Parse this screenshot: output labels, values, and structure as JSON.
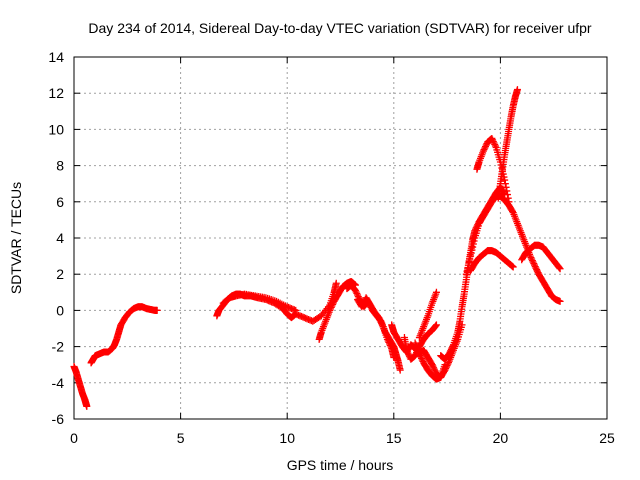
{
  "chart_data": {
    "type": "scatter",
    "title": "Day 234 of 2014, Sidereal Day-to-day VTEC variation (SDTVAR) for receiver ufpr",
    "xlabel": "GPS time / hours",
    "ylabel": "SDTVAR / TECUs",
    "xlim": [
      0,
      25
    ],
    "ylim": [
      -6,
      14
    ],
    "xticks": [
      0,
      5,
      10,
      15,
      20,
      25
    ],
    "yticks": [
      -6,
      -4,
      -2,
      0,
      2,
      4,
      6,
      8,
      10,
      12,
      14
    ],
    "grid": true,
    "marker": "+",
    "series_color": "#ff0000",
    "segments": [
      {
        "x": [
          0.0,
          0.1,
          0.2,
          0.3,
          0.4,
          0.5,
          0.55,
          0.6
        ],
        "y": [
          -3.1,
          -3.4,
          -3.8,
          -4.2,
          -4.6,
          -4.9,
          -5.1,
          -5.3
        ]
      },
      {
        "x": [
          0.8,
          0.9,
          1.0,
          1.2,
          1.4,
          1.6,
          1.8,
          1.9,
          2.0,
          2.1,
          2.2,
          2.4,
          2.6,
          2.8,
          3.0,
          3.2,
          3.4,
          3.6,
          3.8,
          3.9
        ],
        "y": [
          -2.9,
          -2.7,
          -2.5,
          -2.4,
          -2.3,
          -2.3,
          -2.1,
          -1.9,
          -1.6,
          -1.2,
          -0.8,
          -0.4,
          -0.1,
          0.1,
          0.2,
          0.2,
          0.1,
          0.05,
          0.0,
          0.0
        ]
      },
      {
        "x": [
          6.7,
          6.8,
          7.0,
          7.2,
          7.4,
          7.6,
          7.8,
          8.0,
          8.3,
          8.6,
          9.0,
          9.4,
          9.8,
          10.0,
          10.2,
          10.4,
          10.8,
          11.2,
          11.6,
          12.0,
          12.2,
          12.3
        ],
        "y": [
          -0.3,
          0.0,
          0.3,
          0.6,
          0.8,
          0.9,
          0.9,
          0.8,
          0.8,
          0.7,
          0.6,
          0.4,
          0.1,
          -0.2,
          -0.4,
          -0.2,
          -0.4,
          -0.6,
          -0.3,
          0.3,
          1.0,
          1.5
        ]
      },
      {
        "x": [
          7.0,
          7.3,
          7.6,
          8.0,
          8.5,
          9.0,
          9.5,
          10.0,
          10.4
        ],
        "y": [
          0.4,
          0.7,
          0.8,
          0.9,
          0.8,
          0.7,
          0.5,
          0.2,
          0.0
        ]
      },
      {
        "x": [
          11.5,
          11.6,
          11.8,
          12.0,
          12.2,
          12.4,
          12.6,
          12.8,
          13.0,
          13.2
        ],
        "y": [
          -1.6,
          -1.2,
          -0.6,
          0.0,
          0.5,
          0.9,
          1.3,
          1.5,
          1.6,
          1.4
        ]
      },
      {
        "x": [
          12.8,
          13.0,
          13.2,
          13.4,
          13.6,
          13.8,
          14.0,
          14.2,
          14.4,
          14.6,
          14.8,
          15.0,
          15.1,
          15.2,
          15.3
        ],
        "y": [
          1.2,
          1.4,
          1.1,
          0.6,
          0.2,
          0.5,
          0.0,
          -0.3,
          -0.6,
          -1.2,
          -1.6,
          -2.0,
          -2.4,
          -2.8,
          -3.3
        ]
      },
      {
        "x": [
          13.3,
          13.5,
          13.7,
          13.9,
          14.1,
          14.3,
          14.5,
          14.7,
          14.9,
          15.0
        ],
        "y": [
          0.6,
          0.2,
          0.7,
          0.3,
          -0.1,
          -0.4,
          -0.9,
          -1.6,
          -2.1,
          -2.6
        ]
      },
      {
        "x": [
          14.9,
          15.0,
          15.2,
          15.4,
          15.6,
          15.8,
          16.0,
          16.2,
          16.4,
          16.6,
          16.8,
          17.0,
          17.2,
          17.4
        ],
        "y": [
          -0.8,
          -1.2,
          -1.6,
          -2.0,
          -2.3,
          -1.9,
          -2.1,
          -2.4,
          -2.2,
          -2.6,
          -3.0,
          -3.5,
          -3.7,
          -3.0
        ]
      },
      {
        "x": [
          15.5,
          15.6,
          15.8,
          16.0,
          16.2,
          16.4,
          16.6,
          16.8,
          17.0
        ],
        "y": [
          -1.5,
          -2.2,
          -2.7,
          -2.5,
          -2.0,
          -1.6,
          -1.3,
          -1.1,
          -0.8
        ]
      },
      {
        "x": [
          16.0,
          16.2,
          16.4,
          16.6,
          16.8,
          17.0,
          17.2,
          17.4,
          17.6,
          17.8,
          18.0,
          18.2
        ],
        "y": [
          -1.8,
          -2.4,
          -2.9,
          -3.3,
          -3.6,
          -3.8,
          -3.7,
          -3.3,
          -2.8,
          -2.2,
          -1.6,
          -0.8
        ]
      },
      {
        "x": [
          16.2,
          16.4,
          16.6,
          16.8,
          17.0
        ],
        "y": [
          -1.5,
          -0.9,
          -0.3,
          0.4,
          1.0
        ]
      },
      {
        "x": [
          17.2,
          17.4,
          17.6,
          17.8,
          18.0,
          18.1,
          18.2,
          18.3,
          18.4,
          18.5,
          18.6,
          18.7,
          18.8,
          19.0,
          19.2,
          19.4,
          19.6,
          19.8,
          20.0,
          20.2
        ],
        "y": [
          -2.5,
          -2.7,
          -2.4,
          -1.9,
          -1.2,
          -0.6,
          0.2,
          0.9,
          1.7,
          2.5,
          3.2,
          3.9,
          4.4,
          4.9,
          5.3,
          5.7,
          6.1,
          6.5,
          6.8,
          6.4
        ]
      },
      {
        "x": [
          18.4,
          18.6,
          18.8,
          19.0,
          19.2,
          19.4,
          19.6,
          19.8,
          20.0,
          20.2,
          20.4,
          20.6,
          20.8,
          21.0,
          21.2,
          21.4,
          21.6,
          21.8,
          22.0,
          22.2,
          22.4,
          22.6,
          22.8
        ],
        "y": [
          2.0,
          3.0,
          4.0,
          4.8,
          5.2,
          5.6,
          6.0,
          6.3,
          6.3,
          6.1,
          5.8,
          5.4,
          4.8,
          4.2,
          3.6,
          3.0,
          2.5,
          2.0,
          1.6,
          1.2,
          0.8,
          0.6,
          0.5
        ]
      },
      {
        "x": [
          18.6,
          18.8,
          19.0,
          19.2,
          19.4,
          19.6,
          19.8,
          20.0,
          20.2,
          20.4,
          20.6
        ],
        "y": [
          2.2,
          2.6,
          2.9,
          3.1,
          3.3,
          3.3,
          3.2,
          3.0,
          2.8,
          2.6,
          2.4
        ]
      },
      {
        "x": [
          18.9,
          19.0,
          19.2,
          19.4,
          19.6,
          19.8,
          20.0,
          20.2,
          20.4
        ],
        "y": [
          7.8,
          8.2,
          8.8,
          9.3,
          9.5,
          9.0,
          8.2,
          7.2,
          6.0
        ]
      },
      {
        "x": [
          19.9,
          20.0,
          20.1,
          20.2,
          20.3,
          20.4,
          20.5,
          20.6,
          20.7,
          20.8
        ],
        "y": [
          6.2,
          7.0,
          7.8,
          8.6,
          9.3,
          10.0,
          10.7,
          11.3,
          11.8,
          12.2
        ]
      },
      {
        "x": [
          21.0,
          21.2,
          21.4,
          21.6,
          21.8,
          22.0,
          22.2,
          22.4,
          22.6,
          22.8
        ],
        "y": [
          2.8,
          3.2,
          3.4,
          3.6,
          3.6,
          3.5,
          3.2,
          2.9,
          2.6,
          2.3
        ]
      }
    ]
  }
}
